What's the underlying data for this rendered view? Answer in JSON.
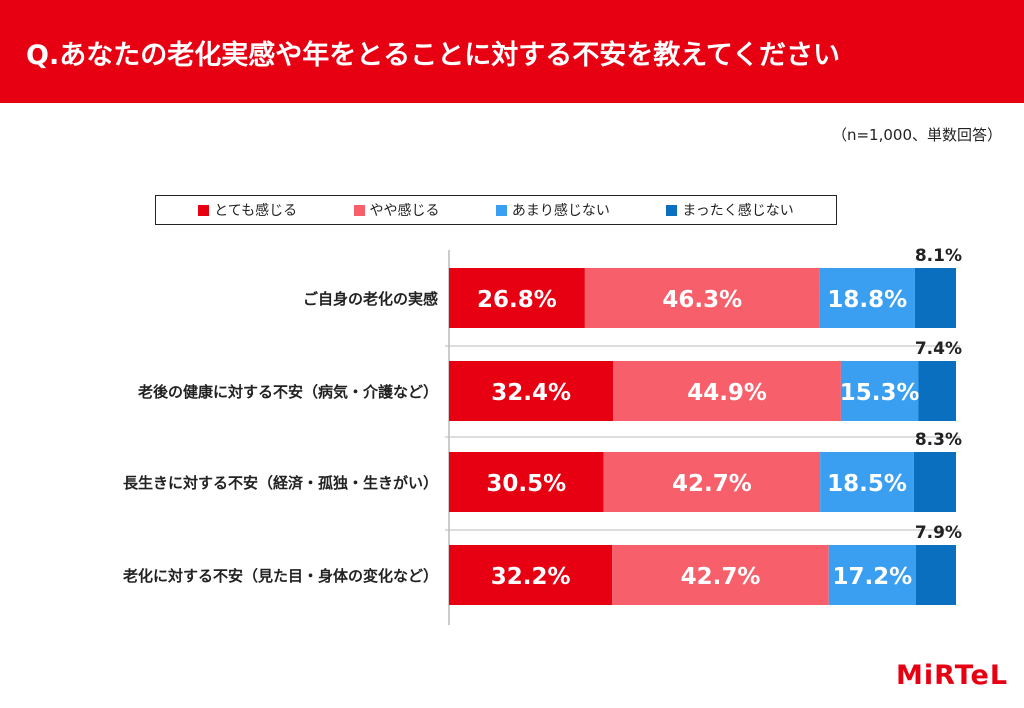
{
  "header": {
    "title": "Q.あなたの老化実感や年をとることに対する不安を教えてください"
  },
  "sample_note": "（n=1,000、単数回答）",
  "logo_text": "MiRTeL",
  "colors": {
    "brand": "#e60012",
    "series": [
      "#e60012",
      "#f7606b",
      "#3a9ff0",
      "#0b6fc0"
    ]
  },
  "chart_data": {
    "type": "bar",
    "orientation": "horizontal",
    "stacked": true,
    "grid": false,
    "legend_position": "top",
    "xlim": [
      0,
      100
    ],
    "categories": [
      "ご自身の老化の実感",
      "老後の健康に対する不安（病気・介護など）",
      "長生きに対する不安（経済・孤独・生きがい）",
      "老化に対する不安（見た目・身体の変化など）"
    ],
    "series": [
      {
        "name": "とても感じる",
        "values": [
          26.8,
          32.4,
          30.5,
          32.2
        ],
        "labels": [
          "26.8%",
          "32.4%",
          "30.5%",
          "32.2%"
        ]
      },
      {
        "name": "やや感じる",
        "values": [
          46.3,
          44.9,
          42.7,
          42.7
        ],
        "labels": [
          "46.3%",
          "44.9%",
          "42.7%",
          "42.7%"
        ]
      },
      {
        "name": "あまり感じない",
        "values": [
          18.8,
          15.3,
          18.5,
          17.2
        ],
        "labels": [
          "18.8%",
          "15.3%",
          "18.5%",
          "17.2%"
        ]
      },
      {
        "name": "まったく感じない",
        "values": [
          8.1,
          7.4,
          8.3,
          7.9
        ],
        "labels": [
          "8.1%",
          "7.4%",
          "8.3%",
          "7.9%"
        ]
      }
    ]
  }
}
